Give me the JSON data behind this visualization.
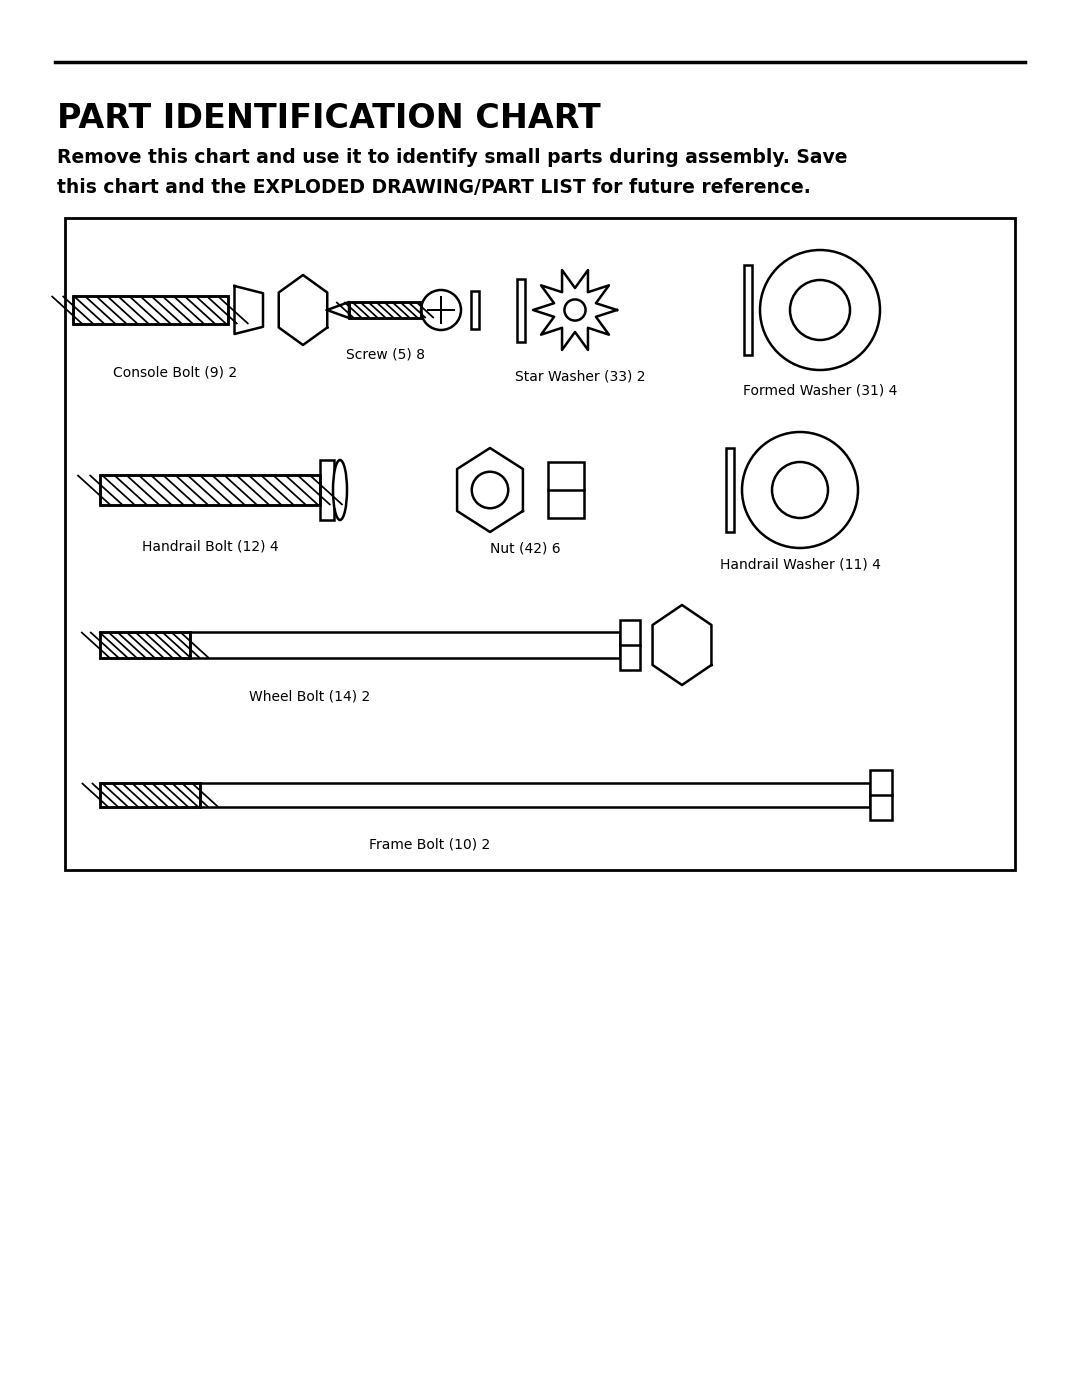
{
  "title": "PART IDENTIFICATION CHART",
  "subtitle_line1": "Remove this chart and use it to identify small parts during assembly. Save",
  "subtitle_line2": "this chart and the EXPLODED DRAWING/PART LIST for future reference.",
  "bg_color": "#ffffff",
  "line_color": "#000000",
  "figsize": [
    10.8,
    13.97
  ],
  "dpi": 100
}
